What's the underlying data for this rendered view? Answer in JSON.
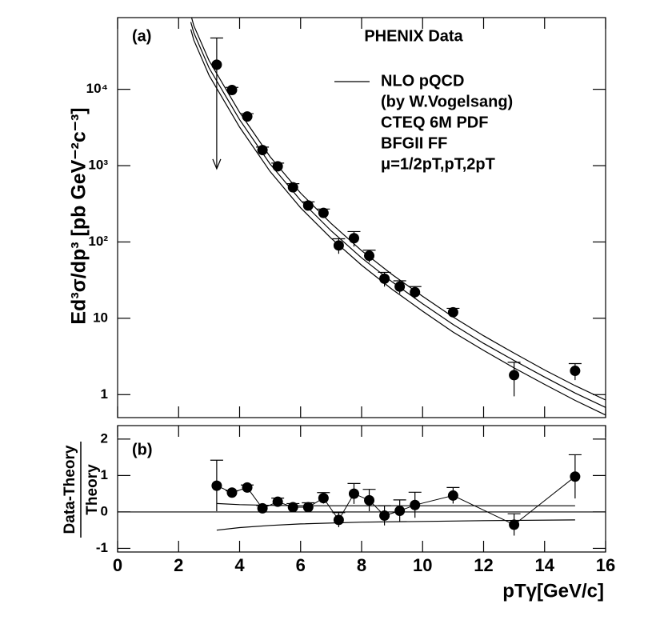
{
  "chart_data": [
    {
      "type": "scatter",
      "panel_label": "(a)",
      "title": "PHENIX Data",
      "ylabel": "Ed³σ/dp³ [pb GeV⁻²c⁻³]",
      "log_y": true,
      "color": "#000000",
      "xlim": [
        0,
        16
      ],
      "ylim": [
        0.5,
        87000
      ],
      "yticks": [
        1,
        10,
        {
          "value": 100,
          "label": "10²"
        },
        {
          "value": 1000,
          "label": "10³"
        },
        {
          "value": 10000,
          "label": "10⁴"
        }
      ],
      "x": [
        3.25,
        3.75,
        4.25,
        4.75,
        5.25,
        5.75,
        6.25,
        6.75,
        7.25,
        7.75,
        8.25,
        8.75,
        9.25,
        9.75,
        11,
        13,
        15
      ],
      "values": [
        21000,
        9800,
        4400,
        1600,
        980,
        520,
        300,
        240,
        90,
        112,
        66,
        33,
        26,
        22,
        12,
        1.8,
        2.05
      ],
      "errors": [
        26000,
        800,
        400,
        150,
        100,
        60,
        35,
        30,
        20,
        25,
        12,
        7,
        5,
        4,
        1.5,
        0.85,
        0.5
      ],
      "theory_name": "NLO pQCD",
      "legend_notes": [
        "(by W.Vogelsang)",
        "CTEQ 6M PDF",
        "BFGII FF",
        "μ=1/2pT,pT,2pT"
      ],
      "curve_x": [
        2.4,
        2.5,
        3,
        4,
        5,
        6,
        7,
        8,
        9,
        10,
        11,
        12,
        13,
        14,
        15,
        16
      ],
      "curves": [
        [
          95000,
          68000,
          23700,
          5000,
          1310,
          437,
          175,
          77,
          37.5,
          19.4,
          10.4,
          5.9,
          3.5,
          2.1,
          1.31,
          0.85
        ],
        [
          76000,
          55000,
          19000,
          4000,
          1050,
          350,
          140,
          62,
          30,
          15.5,
          8.3,
          4.7,
          2.8,
          1.7,
          1.05,
          0.68
        ],
        [
          61000,
          44000,
          15200,
          3200,
          840,
          280,
          112,
          49.6,
          24,
          12.4,
          6.6,
          3.8,
          2.24,
          1.36,
          0.84,
          0.54
        ]
      ]
    },
    {
      "type": "scatter",
      "panel_label": "(b)",
      "ylabel_top": "Data-Theory",
      "ylabel_bottom": "Theory",
      "xlabel": "pTγ[GeV/c]",
      "color": "#000000",
      "xlim": [
        0,
        16
      ],
      "ylim": [
        -1.1,
        2.37
      ],
      "xticks": [
        0,
        2,
        4,
        6,
        8,
        10,
        12,
        14,
        16
      ],
      "yticks": [
        -1,
        0,
        1,
        2
      ],
      "reference_line": 0,
      "x": [
        3.25,
        3.75,
        4.25,
        4.75,
        5.25,
        5.75,
        6.25,
        6.75,
        7.25,
        7.75,
        8.25,
        8.75,
        9.25,
        9.75,
        11,
        13,
        15
      ],
      "values": [
        0.72,
        0.53,
        0.67,
        0.1,
        0.28,
        0.13,
        0.13,
        0.38,
        -0.22,
        0.5,
        0.32,
        -0.1,
        0.03,
        0.19,
        0.45,
        -0.35,
        0.97
      ],
      "errors": [
        0.7,
        0.05,
        0.07,
        0.08,
        0.1,
        0.1,
        0.12,
        0.15,
        0.2,
        0.28,
        0.3,
        0.27,
        0.3,
        0.35,
        0.22,
        0.3,
        0.6
      ],
      "band_x": [
        3.25,
        4,
        5,
        6,
        8,
        10,
        12,
        15
      ],
      "band_upper": [
        0.23,
        0.2,
        0.18,
        0.17,
        0.17,
        0.17,
        0.17,
        0.17
      ],
      "band_lower": [
        -0.5,
        -0.43,
        -0.37,
        -0.33,
        -0.28,
        -0.26,
        -0.24,
        -0.22
      ]
    }
  ]
}
